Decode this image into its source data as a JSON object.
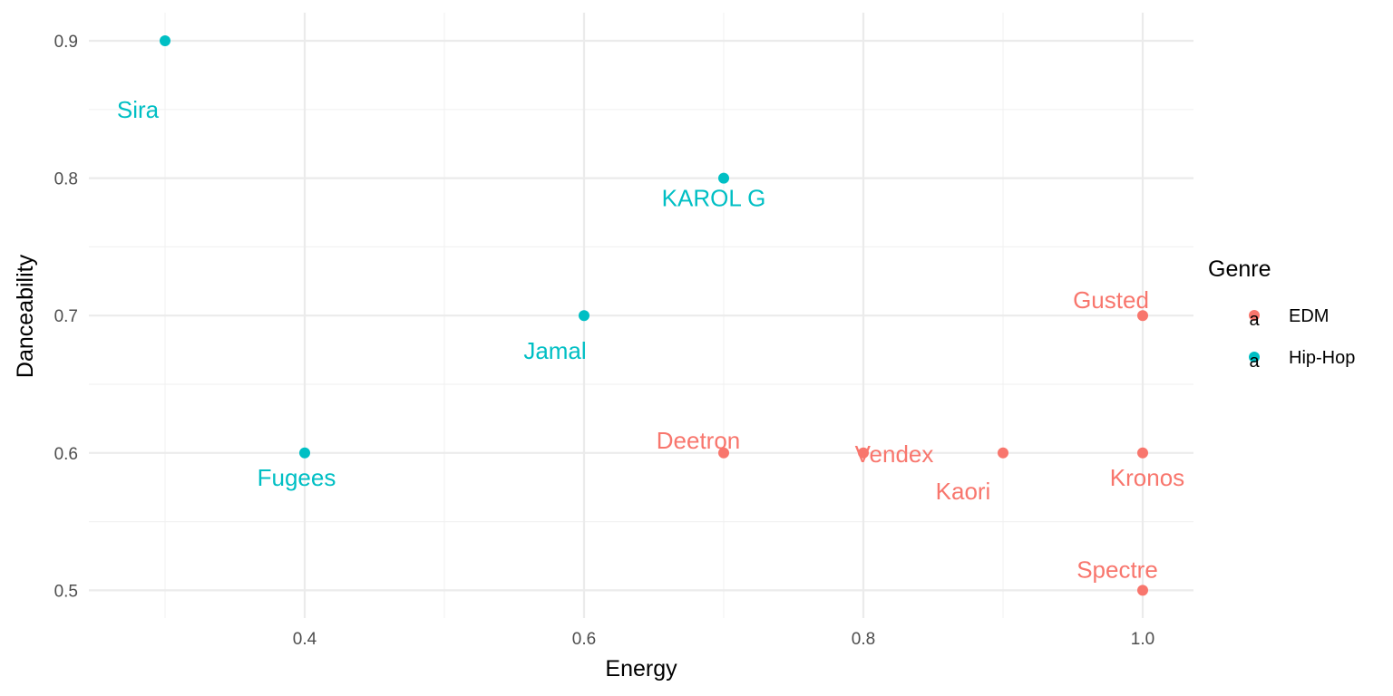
{
  "chart_data": {
    "type": "scatter",
    "title": "",
    "xlabel": "Energy",
    "ylabel": "Danceability",
    "xlim": [
      0.25,
      1.035
    ],
    "ylim": [
      0.48,
      0.92
    ],
    "x_ticks": [
      0.4,
      0.6,
      0.8,
      1.0
    ],
    "x_tick_labels": [
      "0.4",
      "0.6",
      "0.8",
      "1.0"
    ],
    "y_ticks": [
      0.5,
      0.6,
      0.7,
      0.8,
      0.9
    ],
    "y_tick_labels": [
      "0.5",
      "0.6",
      "0.7",
      "0.8",
      "0.9"
    ],
    "grid": true,
    "legend": {
      "title": "Genre",
      "position": "right",
      "glyph": "a",
      "entries": [
        {
          "label": "EDM",
          "color": "#F8766D"
        },
        {
          "label": "Hip-Hop",
          "color": "#00BFC4"
        }
      ]
    },
    "series": [
      {
        "name": "EDM",
        "color": "#F8766D",
        "points": [
          {
            "label": "Gusted",
            "x": 1.0,
            "y": 0.7
          },
          {
            "label": "Deetron",
            "x": 0.7,
            "y": 0.6
          },
          {
            "label": "Vendex",
            "x": 0.8,
            "y": 0.6
          },
          {
            "label": "Kaori",
            "x": 0.9,
            "y": 0.6
          },
          {
            "label": "Kronos",
            "x": 1.0,
            "y": 0.6
          },
          {
            "label": "Spectre",
            "x": 1.0,
            "y": 0.5
          }
        ]
      },
      {
        "name": "Hip-Hop",
        "color": "#00BFC4",
        "points": [
          {
            "label": "Sira",
            "x": 0.3,
            "y": 0.9
          },
          {
            "label": "KAROL G",
            "x": 0.7,
            "y": 0.8
          },
          {
            "label": "Jamal",
            "x": 0.6,
            "y": 0.7
          },
          {
            "label": "Fugees",
            "x": 0.4,
            "y": 0.6
          }
        ]
      }
    ]
  }
}
